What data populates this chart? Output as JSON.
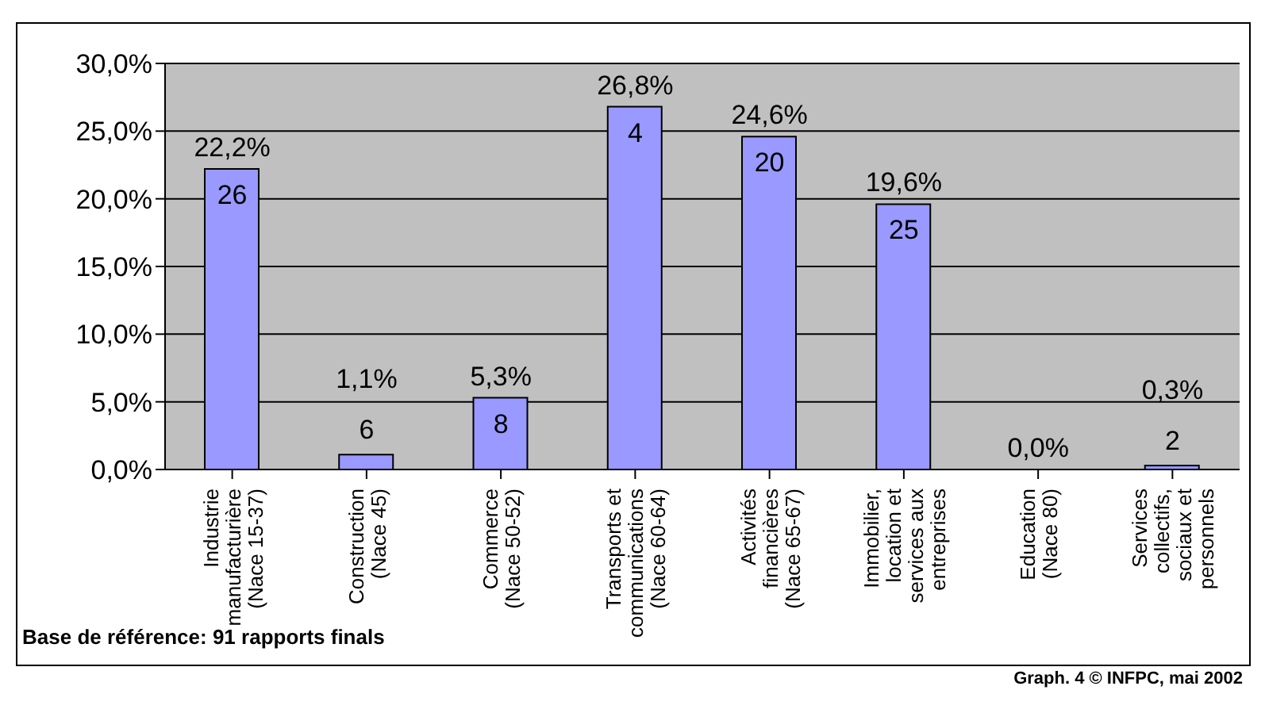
{
  "chart_data": {
    "type": "bar",
    "categories": [
      "Industrie manufacturière (Nace 15-37)",
      "Construction (Nace 45)",
      "Commerce (Nace 50-52)",
      "Transports et communications (Nace 60-64)",
      "Activités financières (Nace 65-67)",
      "Immobilier, location et services aux entreprises",
      "Education (Nace 80)",
      "Services collectifs, sociaux et personnels"
    ],
    "values": [
      22.2,
      1.1,
      5.3,
      26.8,
      24.6,
      19.6,
      0.0,
      0.3
    ],
    "value_labels": [
      "22,2%",
      "1,1%",
      "5,3%",
      "26,8%",
      "24,6%",
      "19,6%",
      "0,0%",
      "0,3%"
    ],
    "color": "#9999ff",
    "ylim": [
      0,
      30
    ],
    "yticks": [
      {
        "value": 0,
        "label": "0,0%"
      },
      {
        "value": 5,
        "label": "5,0%"
      },
      {
        "value": 10,
        "label": "10,0%"
      },
      {
        "value": 15,
        "label": "15,0%"
      },
      {
        "value": 20,
        "label": "20,0%"
      },
      {
        "value": 25,
        "label": "25,0%"
      },
      {
        "value": 30,
        "label": "30,0%"
      }
    ],
    "grid": "y",
    "annotations": [
      {
        "text": "26",
        "x": "Industrie manufacturière (Nace 15-37)",
        "y": 22.2
      },
      {
        "text": "6",
        "x": "Construction (Nace 45)",
        "y": 1.1
      },
      {
        "text": "8",
        "x": "Commerce (Nace 50-52)",
        "y": 5.3
      },
      {
        "text": "4",
        "x": "Transports et communications (Nace 60-64)",
        "y": 26.8
      },
      {
        "text": "20",
        "x": "Activités financières (Nace 65-67)",
        "y": 24.6
      },
      {
        "text": "25",
        "x": "Immobilier, location et services aux entreprises",
        "y": 19.6
      },
      {
        "text": "2",
        "x": "Services collectifs, sociaux et personnels",
        "y": 0.3
      },
      "Base de référence: 91 rapports finals",
      "Graph. 4 © INFPC, mai 2002"
    ]
  }
}
